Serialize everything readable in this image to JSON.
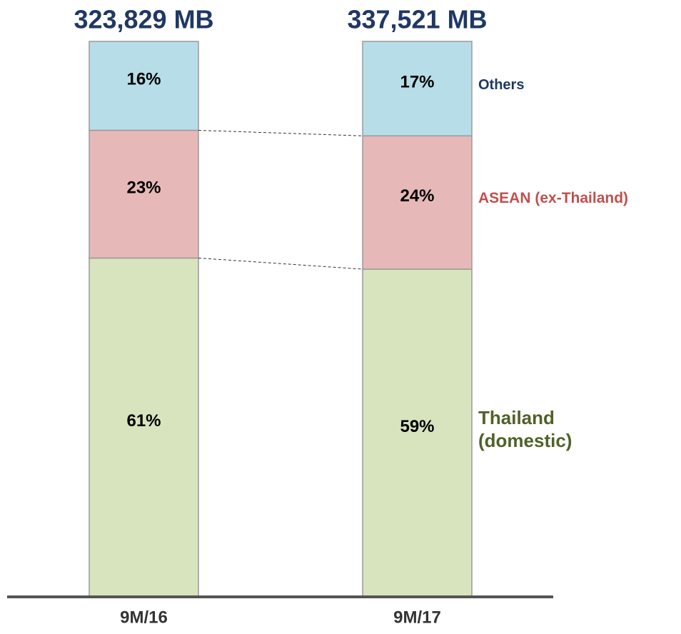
{
  "chart_data": {
    "type": "stacked_bar",
    "categories": [
      "9M/16",
      "9M/17"
    ],
    "total_labels": [
      "323,829 MB",
      "337,521 MB"
    ],
    "ylim": [
      0,
      100
    ],
    "series": [
      {
        "name": "Thailand (domestic)",
        "color": "#d7e4bd",
        "legend_color": "#4f6228",
        "values": [
          61,
          59
        ],
        "value_labels": [
          "61%",
          "59%"
        ]
      },
      {
        "name": "ASEAN (ex-Thailand)",
        "color": "#e6b9b8",
        "legend_color": "#c0504d",
        "values": [
          23,
          24
        ],
        "value_labels": [
          "23%",
          "24%"
        ]
      },
      {
        "name": "Others",
        "color": "#b7dde8",
        "legend_color": "#1f3864",
        "values": [
          16,
          17
        ],
        "value_labels": [
          "16%",
          "17%"
        ]
      }
    ]
  }
}
